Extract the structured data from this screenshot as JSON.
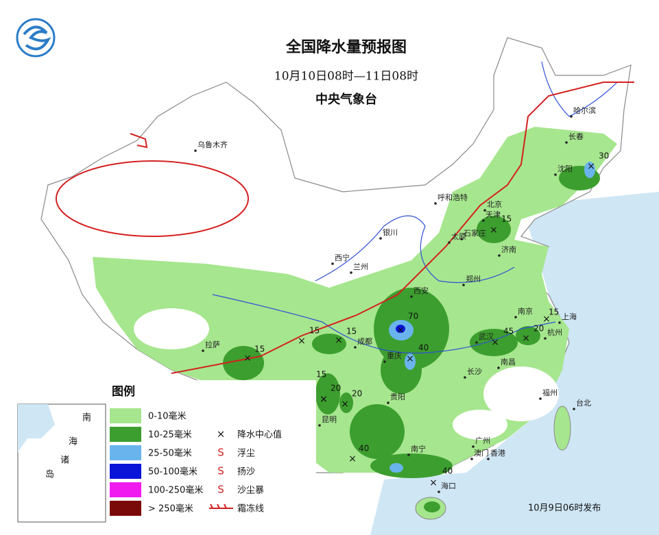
{
  "header": {
    "title": "全国降水量预报图",
    "subtitle": "10月10日08时—11日08时",
    "issuer": "中央气象台"
  },
  "cities": [
    "乌鲁木齐",
    "哈尔滨",
    "长春",
    "沈阳",
    "呼和浩特",
    "北京",
    "天津",
    "石家庄",
    "太原",
    "济南",
    "银川",
    "西宁",
    "兰州",
    "西安",
    "郑州",
    "南京",
    "上海",
    "杭州",
    "武汉",
    "南昌",
    "长沙",
    "重庆",
    "成都",
    "贵阳",
    "昆明",
    "拉萨",
    "南宁",
    "广州",
    "澳门",
    "香港",
    "福州",
    "台北",
    "海口"
  ],
  "rain_centers": [
    30,
    15,
    70,
    40,
    45,
    20,
    15,
    15,
    15,
    15,
    15,
    20,
    20,
    40,
    40
  ],
  "legend": {
    "title": "图例",
    "ranges": [
      {
        "label": "0-10毫米",
        "color": "#a6e68e"
      },
      {
        "label": "10-25毫米",
        "color": "#3c9e2e"
      },
      {
        "label": "25-50毫米",
        "color": "#6ab4ee"
      },
      {
        "label": "50-100毫米",
        "color": "#0a14d8"
      },
      {
        "label": "100-250毫米",
        "color": "#f01af0"
      },
      {
        "label": "> 250毫米",
        "color": "#7a0a0a"
      }
    ],
    "symbols": [
      "降水中心值",
      "浮尘",
      "扬沙",
      "沙尘暴",
      "霜冻线"
    ]
  },
  "inset": {
    "labels": [
      "南",
      "海",
      "诸",
      "岛"
    ]
  },
  "footer": "10月9日06时发布"
}
